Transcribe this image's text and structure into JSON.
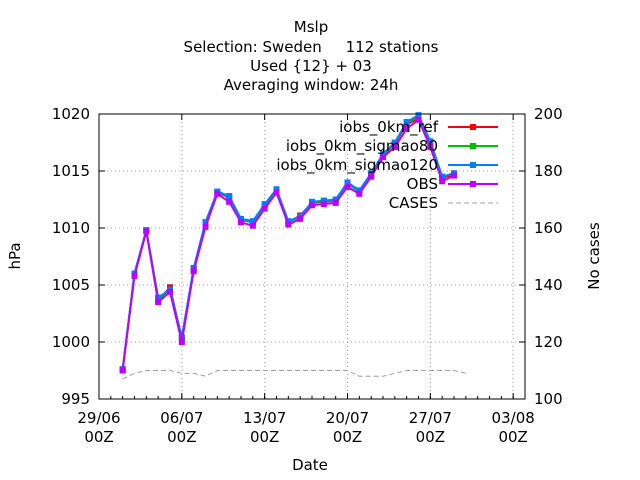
{
  "chart_data": {
    "type": "line",
    "title": "Mslp",
    "subtitle_lines": [
      "Selection: Sweden     112 stations",
      "Used {12} + 03",
      "Averaging window: 24h"
    ],
    "xlabel": "Date",
    "ylabel": "hPa",
    "y2label": "No cases",
    "xlim": [
      "2024-06-29",
      "2024-08-04"
    ],
    "ylim": [
      995,
      1020
    ],
    "y2lim": [
      100,
      200
    ],
    "x_ticks": [
      {
        "day": "2024-06-29",
        "lines": [
          "29/06",
          "00Z"
        ]
      },
      {
        "day": "2024-07-06",
        "lines": [
          "06/07",
          "00Z"
        ]
      },
      {
        "day": "2024-07-13",
        "lines": [
          "13/07",
          "00Z"
        ]
      },
      {
        "day": "2024-07-20",
        "lines": [
          "20/07",
          "00Z"
        ]
      },
      {
        "day": "2024-07-27",
        "lines": [
          "27/07",
          "00Z"
        ]
      },
      {
        "day": "2024-08-03",
        "lines": [
          "03/08",
          "00Z"
        ]
      }
    ],
    "y_ticks": [
      "995",
      "1000",
      "1005",
      "1010",
      "1015",
      "1020"
    ],
    "y2_ticks": [
      "100",
      "120",
      "140",
      "160",
      "180",
      "200"
    ],
    "grid": true,
    "legend_position": "top-right",
    "x": [
      "2024-07-01",
      "2024-07-02",
      "2024-07-03",
      "2024-07-04",
      "2024-07-05",
      "2024-07-06",
      "2024-07-07",
      "2024-07-08",
      "2024-07-09",
      "2024-07-10",
      "2024-07-11",
      "2024-07-12",
      "2024-07-13",
      "2024-07-14",
      "2024-07-15",
      "2024-07-16",
      "2024-07-17",
      "2024-07-18",
      "2024-07-19",
      "2024-07-20",
      "2024-07-21",
      "2024-07-22",
      "2024-07-23",
      "2024-07-24",
      "2024-07-25",
      "2024-07-26",
      "2024-07-27",
      "2024-07-28",
      "2024-07-29",
      "2024-07-30"
    ],
    "series": [
      {
        "name": "iobs_0km_ref",
        "color": "#ff0000",
        "axis": "left",
        "values": [
          997.6,
          1006.0,
          1009.8,
          1003.6,
          1004.8,
          1000.3,
          1006.4,
          1010.5,
          1013.1,
          1012.7,
          1010.7,
          1010.5,
          1012.0,
          1013.3,
          1010.5,
          1011.1,
          1012.2,
          1012.3,
          1012.4,
          1013.9,
          1013.2,
          1014.7,
          1016.4,
          1017.4,
          1019.1,
          1019.6,
          1017.5,
          1014.4,
          1014.7,
          null
        ]
      },
      {
        "name": "iobs_0km_sigmao80",
        "color": "#00c000",
        "axis": "left",
        "values": [
          997.6,
          1006.0,
          1009.8,
          1003.8,
          1004.6,
          1000.4,
          1006.4,
          1010.5,
          1013.1,
          1012.8,
          1010.7,
          1010.5,
          1012.0,
          1013.3,
          1010.5,
          1011.0,
          1012.2,
          1012.4,
          1012.4,
          1013.9,
          1013.2,
          1014.8,
          1016.4,
          1017.5,
          1019.2,
          1019.8,
          1017.6,
          1014.5,
          1014.8,
          null
        ]
      },
      {
        "name": "iobs_0km_sigmao120",
        "color": "#0080ff",
        "axis": "left",
        "values": [
          997.6,
          1006.0,
          1009.8,
          1003.9,
          1004.6,
          1000.4,
          1006.5,
          1010.5,
          1013.2,
          1012.8,
          1010.8,
          1010.6,
          1012.1,
          1013.4,
          1010.6,
          1011.0,
          1012.3,
          1012.4,
          1012.5,
          1014.0,
          1013.3,
          1014.8,
          1016.5,
          1017.5,
          1019.3,
          1019.9,
          1017.6,
          1014.5,
          1014.8,
          null
        ]
      },
      {
        "name": "OBS",
        "color": "#c000ff",
        "axis": "left",
        "values": [
          997.5,
          1005.8,
          1009.7,
          1003.5,
          1004.4,
          1000.0,
          1006.2,
          1010.1,
          1013.0,
          1012.3,
          1010.5,
          1010.2,
          1011.7,
          1013.1,
          1010.3,
          1010.8,
          1012.0,
          1012.1,
          1012.2,
          1013.6,
          1013.0,
          1014.5,
          1016.2,
          1017.1,
          1018.7,
          1019.5,
          1017.1,
          1014.1,
          1014.6,
          null
        ]
      },
      {
        "name": "CASES",
        "color": "#a0a0a0",
        "axis": "right",
        "values": [
          107,
          109,
          110,
          110,
          110,
          109,
          109,
          108,
          110,
          110,
          110,
          110,
          110,
          110,
          110,
          110,
          110,
          110,
          110,
          110,
          108,
          108,
          108,
          109,
          110,
          110,
          110,
          110,
          110,
          109
        ]
      }
    ]
  }
}
